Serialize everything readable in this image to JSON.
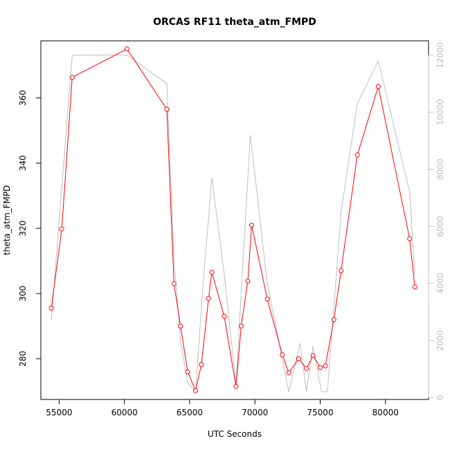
{
  "chart_data": {
    "type": "line",
    "title": "ORCAS RF11 theta_atm_FMPD",
    "xlabel": "UTC Seconds",
    "ylabel": "theta_atm_FMPD",
    "xlim": [
      53600,
      83300
    ],
    "ylim": [
      267.5,
      377.5
    ],
    "y2lim": [
      -70,
      12500
    ],
    "x_ticks": [
      55000,
      60000,
      65000,
      70000,
      75000,
      80000
    ],
    "y_ticks": [
      280,
      300,
      320,
      340,
      360
    ],
    "y2_ticks": [
      0,
      2000,
      4000,
      6000,
      8000,
      10000,
      12000
    ],
    "grid": false,
    "colors": {
      "primary": "#ff0000",
      "secondary": "#bebebe"
    },
    "series": [
      {
        "x": [
          54400,
          55200,
          56000,
          60200,
          63250,
          63800,
          64300,
          64850,
          65450,
          65900,
          66450,
          66700,
          67650,
          68550,
          68950,
          69450,
          69750,
          70950,
          72100,
          72600,
          73350,
          73950,
          74450,
          75000,
          75400,
          76050,
          76600,
          77850,
          79450,
          81850,
          82250
        ],
        "values": [
          295.5,
          319.8,
          366.3,
          375.0,
          356.5,
          303.0,
          290.0,
          276.0,
          270.2,
          278.2,
          298.5,
          306.5,
          293.0,
          271.5,
          290.0,
          303.8,
          321.0,
          298.3,
          281.2,
          275.7,
          280.0,
          277.0,
          281.0,
          277.3,
          277.8,
          292.0,
          307.0,
          342.5,
          363.5,
          316.8,
          302.0
        ]
      },
      {
        "x": [
          54400,
          56000,
          60200,
          63250,
          63800,
          64300,
          64850,
          65450,
          66000,
          66700,
          67600,
          68550,
          69650,
          70950,
          72600,
          73450,
          73950,
          74450,
          75100,
          75550,
          76600,
          77850,
          79450,
          81850,
          82250
        ],
        "values": [
          2700,
          12000,
          12000,
          11000,
          4800,
          2000,
          500,
          200,
          3800,
          7700,
          4500,
          500,
          9200,
          4000,
          200,
          1900,
          200,
          1800,
          200,
          200,
          6500,
          10300,
          11800,
          7200,
          4300
        ]
      }
    ]
  }
}
